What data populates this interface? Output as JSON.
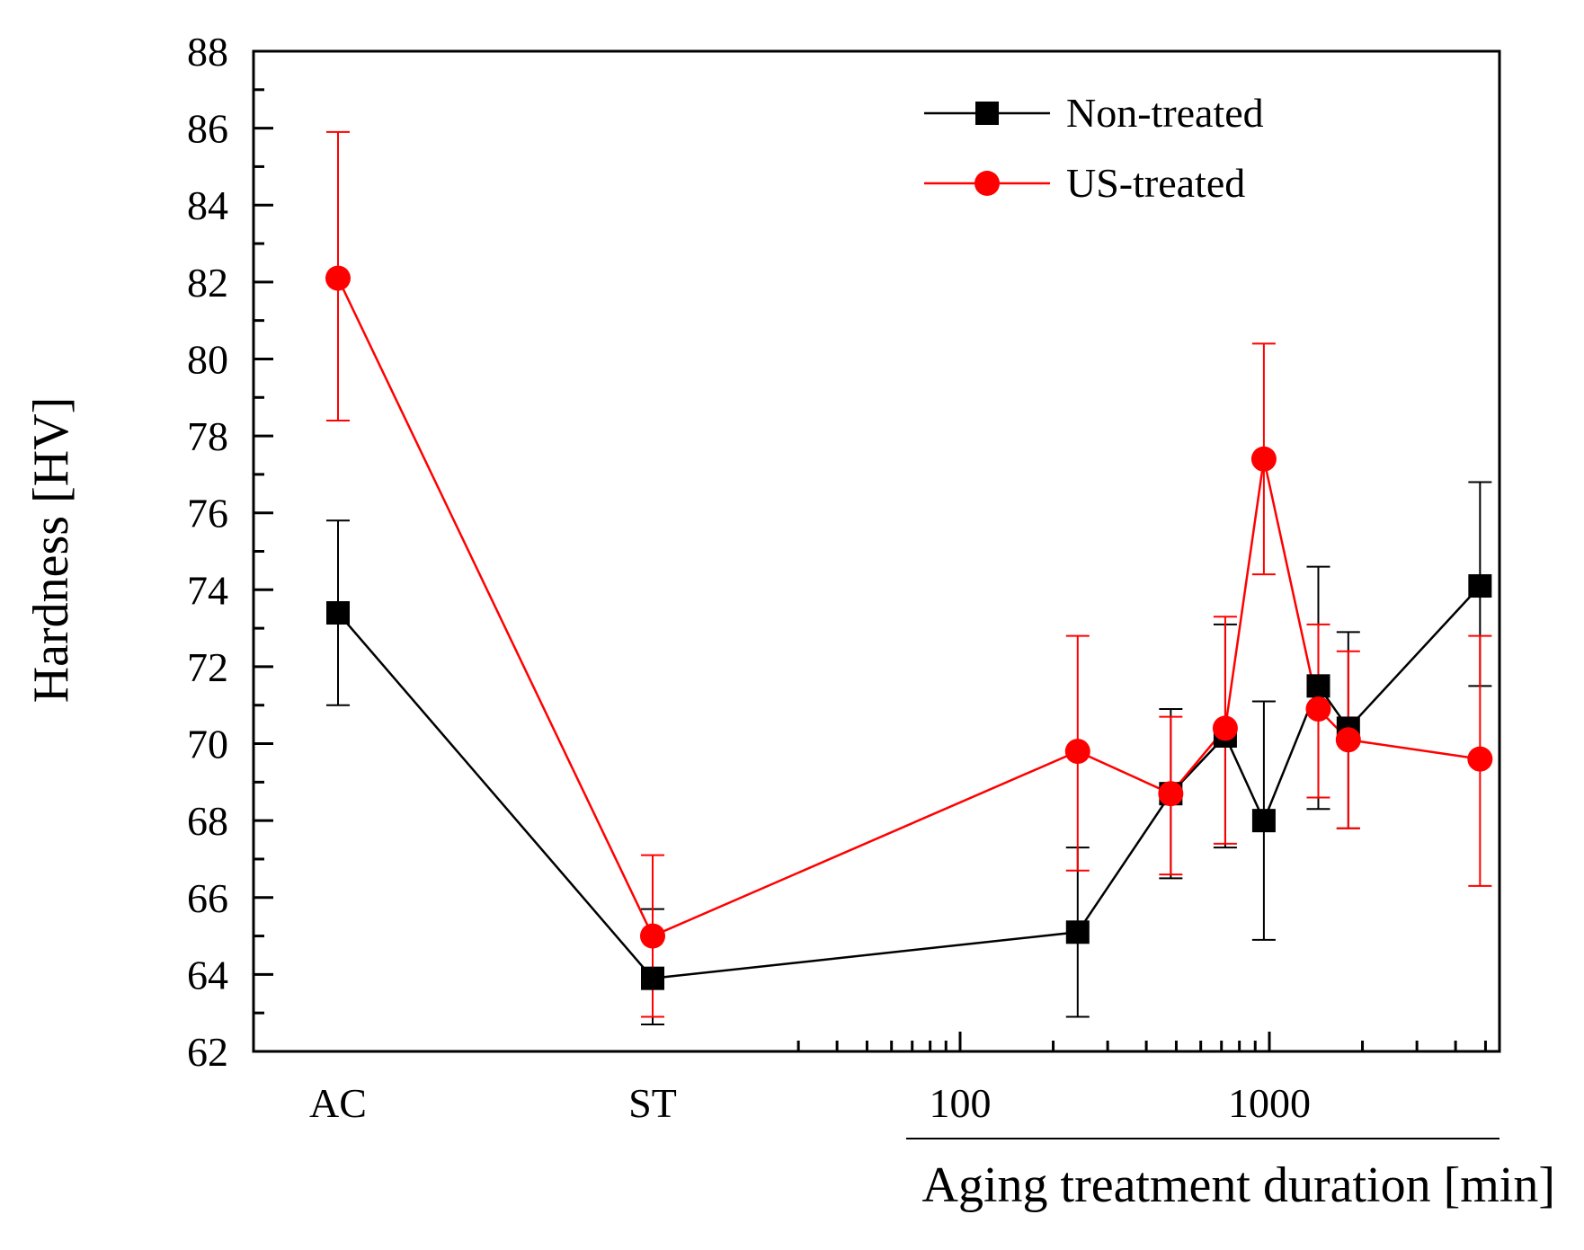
{
  "chart_data": {
    "type": "line",
    "title": "",
    "xlabel": "Aging treatment duration [min]",
    "ylabel": "Hardness [HV]",
    "ylim": [
      62,
      88
    ],
    "yticks": [
      "62",
      "64",
      "66",
      "68",
      "70",
      "72",
      "74",
      "76",
      "78",
      "80",
      "82",
      "84",
      "86",
      "88"
    ],
    "categories_initial": [
      "AC",
      "ST"
    ],
    "x_log_ticks": [
      "100",
      "1000"
    ],
    "x_log_range_min": [
      30,
      5000
    ],
    "legend_position": "top-right",
    "series": [
      {
        "name": "Non-treated",
        "color": "#000000",
        "marker": "square",
        "points": [
          {
            "x": "AC",
            "y": 73.4,
            "err_low": 71.0,
            "err_high": 75.8
          },
          {
            "x": "ST",
            "y": 63.9,
            "err_low": 62.7,
            "err_high": 65.7
          },
          {
            "x": 240,
            "y": 65.1,
            "err_low": 62.9,
            "err_high": 67.3
          },
          {
            "x": 480,
            "y": 68.7,
            "err_low": 66.5,
            "err_high": 70.9
          },
          {
            "x": 720,
            "y": 70.2,
            "err_low": 67.3,
            "err_high": 73.1
          },
          {
            "x": 960,
            "y": 68.0,
            "err_low": 64.9,
            "err_high": 71.1
          },
          {
            "x": 1440,
            "y": 71.5,
            "err_low": 68.3,
            "err_high": 74.6
          },
          {
            "x": 1800,
            "y": 70.4,
            "err_low": 67.8,
            "err_high": 72.9
          },
          {
            "x": 4800,
            "y": 74.1,
            "err_low": 71.5,
            "err_high": 76.8
          }
        ]
      },
      {
        "name": "US-treated",
        "color": "#ff0000",
        "marker": "circle",
        "points": [
          {
            "x": "AC",
            "y": 82.1,
            "err_low": 78.4,
            "err_high": 85.9
          },
          {
            "x": "ST",
            "y": 65.0,
            "err_low": 62.9,
            "err_high": 67.1
          },
          {
            "x": 240,
            "y": 69.8,
            "err_low": 66.7,
            "err_high": 72.8
          },
          {
            "x": 480,
            "y": 68.7,
            "err_low": 66.6,
            "err_high": 70.7
          },
          {
            "x": 720,
            "y": 70.4,
            "err_low": 67.4,
            "err_high": 73.3
          },
          {
            "x": 960,
            "y": 77.4,
            "err_low": 74.4,
            "err_high": 80.4
          },
          {
            "x": 1440,
            "y": 70.9,
            "err_low": 68.6,
            "err_high": 73.1
          },
          {
            "x": 1800,
            "y": 70.1,
            "err_low": 67.8,
            "err_high": 72.4
          },
          {
            "x": 4800,
            "y": 69.6,
            "err_low": 66.3,
            "err_high": 72.8
          }
        ]
      }
    ]
  }
}
